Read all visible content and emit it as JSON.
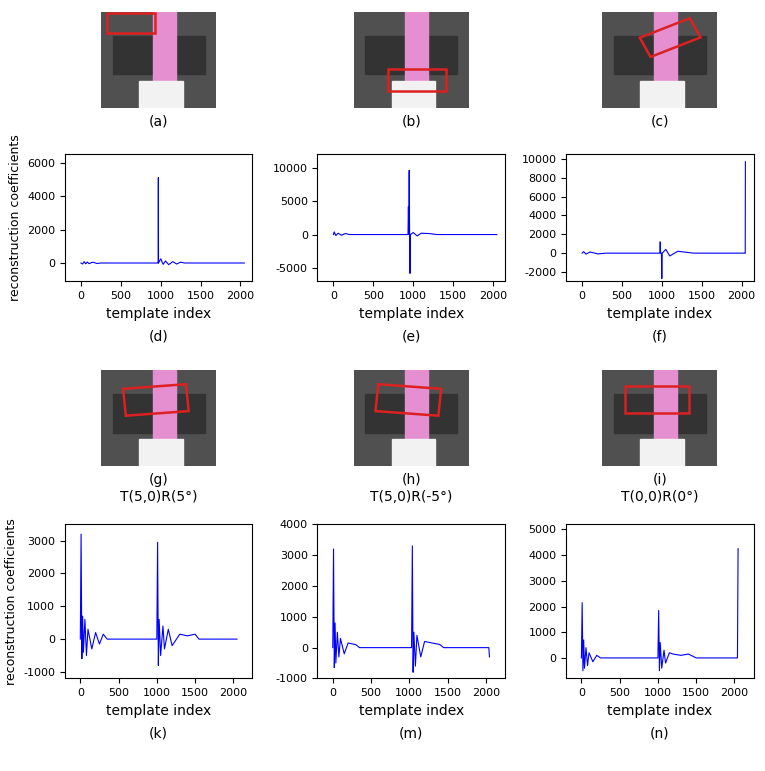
{
  "chart_data": [
    {
      "type": "line",
      "title": "(d)",
      "x_label": "template index",
      "y_label": "reconstruction coefficients",
      "xlim": [
        -200,
        2150
      ],
      "xticks": [
        0,
        500,
        1000,
        1500,
        2000
      ],
      "ylim": [
        -1100,
        6500
      ],
      "yticks": [
        0,
        2000,
        4000,
        6000
      ],
      "series": [
        {
          "color": "#0000ff",
          "x": [
            0,
            20,
            40,
            60,
            80,
            100,
            150,
            200,
            250,
            960,
            968,
            970,
            972,
            1000,
            1030,
            1060,
            1100,
            1150,
            1200,
            1250,
            1300,
            1500,
            2048
          ],
          "values": [
            0,
            -60,
            80,
            -50,
            60,
            -40,
            50,
            -30,
            0,
            0,
            0,
            5100,
            0,
            250,
            -80,
            120,
            -100,
            80,
            -60,
            50,
            0,
            0,
            0
          ]
        }
      ]
    },
    {
      "type": "line",
      "title": "(e)",
      "x_label": "template index",
      "xlim": [
        -200,
        2150
      ],
      "xticks": [
        0,
        500,
        1000,
        1500,
        2000
      ],
      "ylim": [
        -7000,
        12000
      ],
      "yticks": [
        -5000,
        0,
        5000,
        10000
      ],
      "series": [
        {
          "color": "#0000ff",
          "x": [
            0,
            10,
            30,
            60,
            100,
            150,
            200,
            900,
            935,
            940,
            945,
            950,
            955,
            960,
            965,
            1000,
            1050,
            1100,
            1200,
            1300,
            1500,
            2048
          ],
          "values": [
            0,
            400,
            -150,
            200,
            -100,
            150,
            0,
            0,
            0,
            4200,
            0,
            9600,
            0,
            -5800,
            0,
            300,
            -200,
            200,
            150,
            0,
            0,
            0
          ]
        }
      ]
    },
    {
      "type": "line",
      "title": "(f)",
      "x_label": "template index",
      "xlim": [
        -200,
        2150
      ],
      "xticks": [
        0,
        500,
        1000,
        1500,
        2000
      ],
      "ylim": [
        -3000,
        10500
      ],
      "yticks": [
        -2000,
        0,
        2000,
        4000,
        6000,
        8000,
        10000
      ],
      "series": [
        {
          "color": "#0000ff",
          "x": [
            0,
            20,
            50,
            100,
            200,
            300,
            960,
            975,
            980,
            985,
            995,
            1000,
            1005,
            1050,
            1100,
            1200,
            1300,
            1400,
            2040,
            2046,
            2048
          ],
          "values": [
            0,
            150,
            -100,
            120,
            -80,
            0,
            0,
            0,
            1200,
            0,
            0,
            -2700,
            0,
            400,
            -300,
            200,
            100,
            0,
            0,
            0,
            9700
          ]
        }
      ]
    },
    {
      "type": "line",
      "title": "(k)",
      "x_label": "template index",
      "y_label": "reconstruction coefficients",
      "xlim": [
        -200,
        2250
      ],
      "xticks": [
        0,
        500,
        1000,
        1500,
        2000
      ],
      "ylim": [
        -1200,
        3500
      ],
      "yticks": [
        -1000,
        0,
        1000,
        2000,
        3000
      ],
      "series": [
        {
          "color": "#0000ff",
          "x": [
            0,
            10,
            20,
            30,
            40,
            60,
            80,
            100,
            150,
            200,
            250,
            300,
            350,
            1000,
            1010,
            1020,
            1030,
            1050,
            1080,
            1100,
            1150,
            1200,
            1300,
            1400,
            1500,
            1550,
            2048
          ],
          "values": [
            0,
            3200,
            -600,
            700,
            -400,
            600,
            -500,
            300,
            -300,
            200,
            -150,
            150,
            0,
            0,
            2950,
            -800,
            600,
            -500,
            400,
            -300,
            300,
            -200,
            150,
            100,
            150,
            0,
            0
          ]
        }
      ]
    },
    {
      "type": "line",
      "title": "(m)",
      "x_label": "template index",
      "xlim": [
        -200,
        2250
      ],
      "xticks": [
        0,
        500,
        1000,
        1500,
        2000
      ],
      "ylim": [
        -1000,
        4000
      ],
      "yticks": [
        -1000,
        0,
        1000,
        2000,
        3000,
        4000
      ],
      "series": [
        {
          "color": "#0000ff",
          "x": [
            0,
            10,
            20,
            30,
            40,
            60,
            80,
            100,
            150,
            200,
            300,
            350,
            1030,
            1040,
            1050,
            1060,
            1080,
            1100,
            1150,
            1200,
            1300,
            1400,
            1450,
            2040,
            2048
          ],
          "values": [
            0,
            3200,
            -650,
            800,
            -500,
            500,
            -300,
            300,
            -200,
            150,
            100,
            0,
            0,
            3300,
            -800,
            500,
            -600,
            400,
            -300,
            200,
            150,
            100,
            0,
            0,
            -300
          ]
        }
      ]
    },
    {
      "type": "line",
      "title": "(n)",
      "x_label": "template index",
      "xlim": [
        -200,
        2250
      ],
      "xticks": [
        0,
        500,
        1000,
        1500,
        2000
      ],
      "ylim": [
        -800,
        5200
      ],
      "yticks": [
        0,
        1000,
        2000,
        3000,
        4000,
        5000
      ],
      "series": [
        {
          "color": "#0000ff",
          "x": [
            0,
            10,
            20,
            30,
            40,
            60,
            80,
            100,
            150,
            200,
            250,
            1000,
            1010,
            1020,
            1030,
            1050,
            1080,
            1100,
            1150,
            1200,
            1300,
            1400,
            1500,
            2040,
            2048
          ],
          "values": [
            0,
            2150,
            -500,
            700,
            -400,
            400,
            -300,
            200,
            -150,
            100,
            0,
            0,
            1850,
            -500,
            600,
            -400,
            300,
            -200,
            200,
            150,
            100,
            150,
            0,
            0,
            4250
          ]
        }
      ]
    }
  ],
  "images": [
    {
      "label": "(a)"
    },
    {
      "label": "(b)"
    },
    {
      "label": "(c)"
    },
    {
      "label": "(g)",
      "caption": "T(5,0)R(5°)"
    },
    {
      "label": "(h)",
      "caption": "T(5,0)R(-5°)"
    },
    {
      "label": "(i)",
      "caption": "T(0,0)R(0°)"
    }
  ]
}
